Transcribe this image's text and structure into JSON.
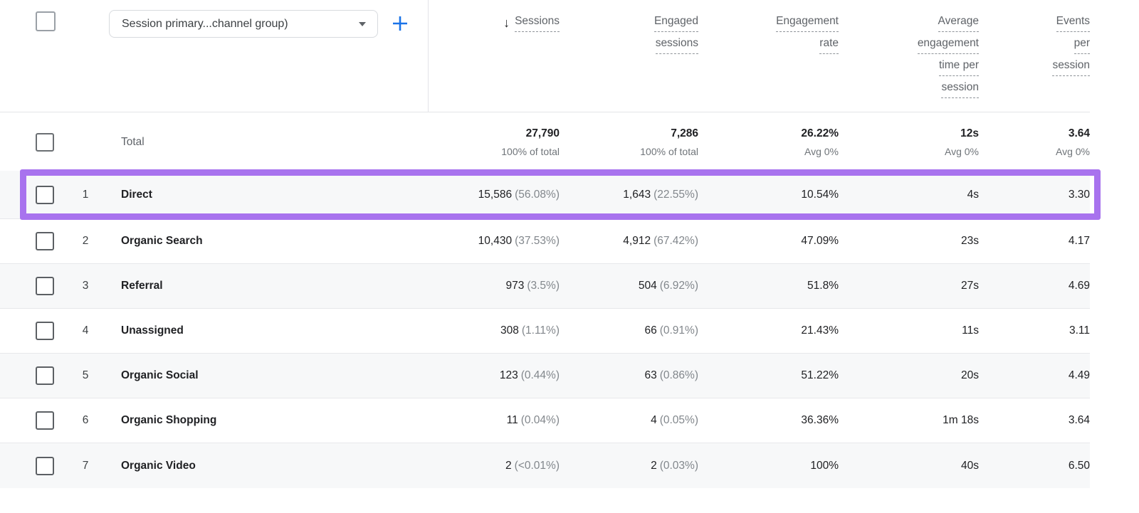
{
  "controls": {
    "select_all": "",
    "dimension_dropdown_label": "Session primary...channel group)",
    "add_icon_name": "add-dimension-icon"
  },
  "columns": [
    {
      "lines": [
        "Sessions"
      ],
      "sorted_desc": true
    },
    {
      "lines": [
        "Engaged",
        "sessions"
      ]
    },
    {
      "lines": [
        "Engagement",
        "rate"
      ]
    },
    {
      "lines": [
        "Average",
        "engagement",
        "time per",
        "session"
      ]
    },
    {
      "lines": [
        "Events",
        "per",
        "session"
      ]
    }
  ],
  "total_row": {
    "label": "Total",
    "metrics": [
      {
        "value": "27,790",
        "sub": "100% of total"
      },
      {
        "value": "7,286",
        "sub": "100% of total"
      },
      {
        "value": "26.22%",
        "sub": "Avg 0%"
      },
      {
        "value": "12s",
        "sub": "Avg 0%"
      },
      {
        "value": "3.64",
        "sub": "Avg 0%"
      }
    ]
  },
  "rows": [
    {
      "num": "1",
      "channel": "Direct",
      "sessions": "15,586",
      "sessions_pct": "(56.08%)",
      "engaged": "1,643",
      "engaged_pct": "(22.55%)",
      "rate": "10.54%",
      "avg_time": "4s",
      "events": "3.30",
      "highlighted": true
    },
    {
      "num": "2",
      "channel": "Organic Search",
      "sessions": "10,430",
      "sessions_pct": "(37.53%)",
      "engaged": "4,912",
      "engaged_pct": "(67.42%)",
      "rate": "47.09%",
      "avg_time": "23s",
      "events": "4.17",
      "highlighted": false
    },
    {
      "num": "3",
      "channel": "Referral",
      "sessions": "973",
      "sessions_pct": "(3.5%)",
      "engaged": "504",
      "engaged_pct": "(6.92%)",
      "rate": "51.8%",
      "avg_time": "27s",
      "events": "4.69",
      "highlighted": false
    },
    {
      "num": "4",
      "channel": "Unassigned",
      "sessions": "308",
      "sessions_pct": "(1.11%)",
      "engaged": "66",
      "engaged_pct": "(0.91%)",
      "rate": "21.43%",
      "avg_time": "11s",
      "events": "3.11",
      "highlighted": false
    },
    {
      "num": "5",
      "channel": "Organic Social",
      "sessions": "123",
      "sessions_pct": "(0.44%)",
      "engaged": "63",
      "engaged_pct": "(0.86%)",
      "rate": "51.22%",
      "avg_time": "20s",
      "events": "4.49",
      "highlighted": false
    },
    {
      "num": "6",
      "channel": "Organic Shopping",
      "sessions": "11",
      "sessions_pct": "(0.04%)",
      "engaged": "4",
      "engaged_pct": "(0.05%)",
      "rate": "36.36%",
      "avg_time": "1m 18s",
      "events": "3.64",
      "highlighted": false
    },
    {
      "num": "7",
      "channel": "Organic Video",
      "sessions": "2",
      "sessions_pct": "(<0.01%)",
      "engaged": "2",
      "engaged_pct": "(0.03%)",
      "rate": "100%",
      "avg_time": "40s",
      "events": "6.50",
      "highlighted": false
    }
  ],
  "colors": {
    "highlight_purple": "#a873ee",
    "accent_blue": "#1a73e8",
    "alt_row_bg": "#f7f8f9",
    "divider": "#e3e4e8",
    "text_dark": "#202124",
    "text_gray": "#5f6368",
    "text_light_gray": "#82878c"
  }
}
